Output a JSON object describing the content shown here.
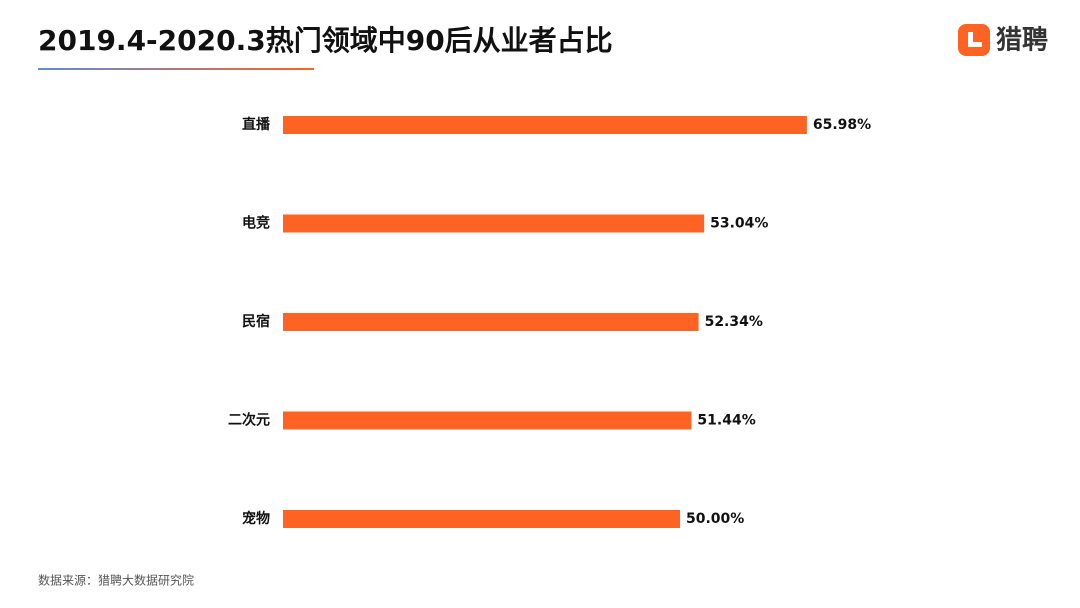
{
  "brand": "猎聘",
  "chart_data": {
    "type": "bar",
    "orientation": "horizontal",
    "title": "2019.4-2020.3热门领域中90后从业者占比",
    "categories": [
      "直播",
      "电竞",
      "民宿",
      "二次元",
      "宠物"
    ],
    "values": [
      65.98,
      53.04,
      52.34,
      51.44,
      50.0
    ],
    "value_labels": [
      "65.98%",
      "53.04%",
      "52.34%",
      "51.44%",
      "50.00%"
    ],
    "color": "#fe6323",
    "source": "数据来源：猎聘大数据研究院"
  }
}
